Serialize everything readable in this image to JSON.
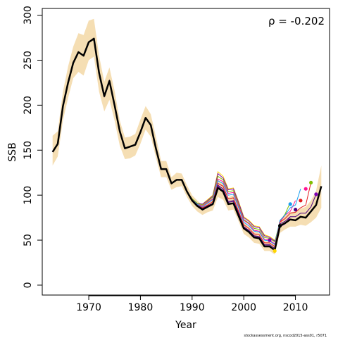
{
  "chart_data": {
    "type": "line",
    "xlabel": "Year",
    "ylabel": "SSB",
    "xlim": [
      1961.0,
      2016.6
    ],
    "ylim": [
      -11.0,
      307.5
    ],
    "x_ticks": [
      1970,
      1980,
      1990,
      2000,
      2010
    ],
    "y_ticks": [
      0,
      50,
      100,
      150,
      200,
      250,
      300
    ],
    "annotation": "ρ = -0.202",
    "footer": "stockassessment.org, nscod2015-ass01, r5071",
    "colors": {
      "band": "#f5deb3",
      "final": "#000000",
      "peels": [
        "#4b0082",
        "#e41a1c",
        "#1a9ff0",
        "#ff1493",
        "#7fbf00",
        "#7b00b3",
        "#ffd700"
      ]
    },
    "band": {
      "x": [
        1963,
        1964,
        1965,
        1966,
        1967,
        1968,
        1969,
        1970,
        1971,
        1972,
        1973,
        1974,
        1975,
        1976,
        1977,
        1978,
        1979,
        1980,
        1981,
        1982,
        1983,
        1984,
        1985,
        1986,
        1987,
        1988,
        1989,
        1990,
        1991,
        1992,
        1993,
        1994,
        1995,
        1996,
        1997,
        1998,
        1999,
        2000,
        2001,
        2002,
        2003,
        2004,
        2005,
        2006,
        2007,
        2008,
        2009,
        2010,
        2011,
        2012,
        2013,
        2014,
        2015
      ],
      "lower": [
        133,
        143,
        183,
        208,
        230,
        237,
        233,
        250,
        254,
        215,
        193,
        206,
        183,
        155,
        140,
        141,
        144,
        157,
        173,
        165,
        142,
        120,
        120,
        106,
        109,
        110,
        98,
        88,
        82,
        78,
        81,
        83,
        98,
        95,
        83,
        84,
        71,
        57,
        53,
        47,
        46,
        38,
        38,
        34,
        58,
        62,
        65,
        65,
        67,
        66,
        70,
        75,
        86
      ],
      "upper": [
        166,
        171,
        215,
        243,
        265,
        280,
        278,
        294,
        296,
        255,
        226,
        242,
        216,
        183,
        164,
        165,
        168,
        184,
        199,
        190,
        165,
        138,
        138,
        120,
        125,
        124,
        111,
        100,
        94,
        89,
        93,
        97,
        117,
        113,
        98,
        100,
        85,
        70,
        65,
        59,
        58,
        49,
        48,
        44,
        72,
        77,
        81,
        82,
        85,
        87,
        94,
        105,
        133
      ]
    },
    "series": [
      {
        "values": [
          148,
          157,
          199,
          225,
          247,
          259,
          255,
          270,
          274,
          236,
          210,
          227,
          200,
          171,
          152,
          154,
          156,
          170,
          186,
          178,
          152,
          129,
          129,
          113,
          117,
          117,
          104,
          94,
          88,
          84,
          87,
          90,
          108,
          104,
          90,
          91,
          77,
          63,
          59,
          53,
          52,
          43,
          43,
          39,
          66,
          69,
          73,
          72,
          76,
          75,
          82,
          89,
          110
        ],
        "x": [
          1963,
          1964,
          1965,
          1966,
          1967,
          1968,
          1969,
          1970,
          1971,
          1972,
          1973,
          1974,
          1975,
          1976,
          1977,
          1978,
          1979,
          1980,
          1981,
          1982,
          1983,
          1984,
          1985,
          1986,
          1987,
          1988,
          1989,
          1990,
          1991,
          1992,
          1993,
          1994,
          1995,
          1996,
          1997,
          1998,
          1999,
          2000,
          2001,
          2002,
          2003,
          2004,
          2005,
          2006,
          2007,
          2008,
          2009,
          2010,
          2011,
          2012,
          2013,
          2014,
          2015
        ]
      },
      {
        "values": [
          148,
          157,
          199,
          225,
          247,
          259,
          255,
          270,
          274,
          236,
          210,
          227,
          200,
          171,
          152,
          154,
          156,
          170,
          186,
          178,
          152,
          129,
          129,
          113,
          117,
          117,
          104,
          95,
          89,
          85,
          88,
          91,
          111,
          107,
          93,
          94,
          80,
          65,
          61,
          55,
          54,
          45,
          45,
          41,
          68,
          71,
          76,
          76,
          80,
          80,
          87,
          101
        ],
        "x": [
          1963,
          1964,
          1965,
          1966,
          1967,
          1968,
          1969,
          1970,
          1971,
          1972,
          1973,
          1974,
          1975,
          1976,
          1977,
          1978,
          1979,
          1980,
          1981,
          1982,
          1983,
          1984,
          1985,
          1986,
          1987,
          1988,
          1989,
          1990,
          1991,
          1992,
          1993,
          1994,
          1995,
          1996,
          1997,
          1998,
          1999,
          2000,
          2001,
          2002,
          2003,
          2004,
          2005,
          2006,
          2007,
          2008,
          2009,
          2010,
          2011,
          2012,
          2013,
          2014
        ]
      },
      {
        "values": [
          148,
          157,
          199,
          225,
          247,
          259,
          255,
          270,
          274,
          236,
          210,
          227,
          200,
          171,
          152,
          154,
          156,
          170,
          186,
          178,
          152,
          129,
          129,
          113,
          117,
          117,
          104,
          95,
          89,
          86,
          89,
          93,
          113,
          110,
          96,
          97,
          82,
          67,
          63,
          57,
          56,
          47,
          47,
          43,
          70,
          74,
          80,
          81,
          86,
          89,
          114
        ],
        "x": [
          1963,
          1964,
          1965,
          1966,
          1967,
          1968,
          1969,
          1970,
          1971,
          1972,
          1973,
          1974,
          1975,
          1976,
          1977,
          1978,
          1979,
          1980,
          1981,
          1982,
          1983,
          1984,
          1985,
          1986,
          1987,
          1988,
          1989,
          1990,
          1991,
          1992,
          1993,
          1994,
          1995,
          1996,
          1997,
          1998,
          1999,
          2000,
          2001,
          2002,
          2003,
          2004,
          2005,
          2006,
          2007,
          2008,
          2009,
          2010,
          2011,
          2012,
          2013
        ]
      },
      {
        "values": [
          148,
          157,
          199,
          225,
          247,
          259,
          255,
          270,
          274,
          236,
          210,
          227,
          200,
          171,
          152,
          154,
          156,
          170,
          186,
          178,
          152,
          129,
          129,
          113,
          117,
          117,
          104,
          95,
          90,
          87,
          91,
          95,
          116,
          113,
          100,
          101,
          86,
          70,
          66,
          60,
          59,
          50,
          49,
          45,
          72,
          78,
          86,
          89,
          107
        ],
        "x": [
          1963,
          1964,
          1965,
          1966,
          1967,
          1968,
          1969,
          1970,
          1971,
          1972,
          1973,
          1974,
          1975,
          1976,
          1977,
          1978,
          1979,
          1980,
          1981,
          1982,
          1983,
          1984,
          1985,
          1986,
          1987,
          1988,
          1989,
          1990,
          1991,
          1992,
          1993,
          1994,
          1995,
          1996,
          1997,
          1998,
          1999,
          2000,
          2001,
          2002,
          2003,
          2004,
          2005,
          2006,
          2007,
          2008,
          2009,
          2010,
          2011
        ]
      },
      {
        "values": [
          148,
          157,
          199,
          225,
          247,
          259,
          255,
          270,
          274,
          236,
          210,
          227,
          200,
          171,
          152,
          154,
          156,
          170,
          186,
          178,
          152,
          129,
          129,
          113,
          117,
          117,
          104,
          95,
          90,
          88,
          92,
          96,
          118,
          115,
          102,
          103,
          88,
          72,
          68,
          61,
          60,
          51,
          50,
          46,
          70,
          78,
          82,
          94
        ],
        "x": [
          1963,
          1964,
          1965,
          1966,
          1967,
          1968,
          1969,
          1970,
          1971,
          1972,
          1973,
          1974,
          1975,
          1976,
          1977,
          1978,
          1979,
          1980,
          1981,
          1982,
          1983,
          1984,
          1985,
          1986,
          1987,
          1988,
          1989,
          1990,
          1991,
          1992,
          1993,
          1994,
          1995,
          1996,
          1997,
          1998,
          1999,
          2000,
          2001,
          2002,
          2003,
          2004,
          2005,
          2006,
          2007,
          2008,
          2009,
          2010
        ]
      },
      {
        "values": [
          148,
          157,
          199,
          225,
          247,
          259,
          255,
          270,
          274,
          236,
          210,
          227,
          200,
          171,
          152,
          154,
          156,
          170,
          186,
          178,
          152,
          129,
          129,
          113,
          117,
          117,
          104,
          96,
          91,
          89,
          93,
          98,
          121,
          117,
          104,
          105,
          90,
          73,
          69,
          63,
          62,
          53,
          52,
          48,
          71,
          79,
          92
        ],
        "x": [
          1963,
          1964,
          1965,
          1966,
          1967,
          1968,
          1969,
          1970,
          1971,
          1972,
          1973,
          1974,
          1975,
          1976,
          1977,
          1978,
          1979,
          1980,
          1981,
          1982,
          1983,
          1984,
          1985,
          1986,
          1987,
          1988,
          1989,
          1990,
          1991,
          1992,
          1993,
          1994,
          1995,
          1996,
          1997,
          1998,
          1999,
          2000,
          2001,
          2002,
          2003,
          2004,
          2005,
          2006,
          2007,
          2008,
          2009
        ]
      },
      {
        "values": [
          148,
          157,
          199,
          225,
          247,
          259,
          255,
          270,
          274,
          236,
          210,
          227,
          200,
          171,
          152,
          154,
          156,
          170,
          186,
          178,
          152,
          129,
          129,
          113,
          117,
          117,
          104,
          96,
          91,
          90,
          94,
          99,
          124,
          119,
          106,
          107,
          92,
          75,
          71,
          65,
          64,
          55,
          53,
          49,
          65,
          68,
          76
        ],
        "x": [
          1963,
          1964,
          1965,
          1966,
          1967,
          1968,
          1969,
          1970,
          1971,
          1972,
          1973,
          1974,
          1975,
          1976,
          1977,
          1978,
          1979,
          1980,
          1981,
          1982,
          1983,
          1984,
          1985,
          1986,
          1987,
          1988,
          1989,
          1990,
          1991,
          1992,
          1993,
          1994,
          1995,
          1996,
          1997,
          1998,
          1999,
          2000,
          2001,
          2002,
          2003,
          2004,
          2005,
          2006,
          2007,
          2008,
          2009
        ]
      },
      {
        "values": [
          148,
          157,
          199,
          225,
          247,
          259,
          255,
          270,
          274,
          236,
          210,
          227,
          200,
          171,
          152,
          154,
          156,
          170,
          186,
          178,
          152,
          129,
          129,
          113,
          117,
          117,
          104,
          96,
          91,
          90,
          95,
          100,
          126,
          121,
          107,
          108,
          93,
          76,
          72,
          66,
          65,
          56,
          54,
          50
        ],
        "x": [
          1963,
          1964,
          1965,
          1966,
          1967,
          1968,
          1969,
          1970,
          1971,
          1972,
          1973,
          1974,
          1975,
          1976,
          1977,
          1978,
          1979,
          1980,
          1981,
          1982,
          1983,
          1984,
          1985,
          1986,
          1987,
          1988,
          1989,
          1990,
          1991,
          1992,
          1993,
          1994,
          1995,
          1996,
          1997,
          1998,
          1999,
          2000,
          2001,
          2002,
          2003,
          2004,
          2005,
          2006
        ]
      },
      {
        "values": [
          148,
          157,
          199,
          225,
          247,
          259,
          255,
          270,
          274,
          236,
          210,
          227,
          200,
          171,
          152,
          154,
          156,
          170,
          186,
          178,
          152,
          129,
          129,
          113,
          117,
          117,
          104,
          95,
          89,
          85,
          88,
          91,
          110,
          105,
          92,
          93,
          79,
          64,
          60,
          54,
          53,
          44,
          44,
          38
        ],
        "x": [
          1963,
          1964,
          1965,
          1966,
          1967,
          1968,
          1969,
          1970,
          1971,
          1972,
          1973,
          1974,
          1975,
          1976,
          1977,
          1978,
          1979,
          1980,
          1981,
          1982,
          1983,
          1984,
          1985,
          1986,
          1987,
          1988,
          1989,
          1990,
          1991,
          1992,
          1993,
          1994,
          1995,
          1996,
          1997,
          1998,
          1999,
          2000,
          2001,
          2002,
          2003,
          2004,
          2005,
          2006
        ]
      }
    ],
    "endpoints": [
      {
        "x": 2007,
        "y": 66,
        "color": "#000000"
      },
      {
        "x": 2014,
        "y": 101,
        "color": "#7b00b3"
      },
      {
        "x": 2013,
        "y": 114,
        "color": "#7fbf00"
      },
      {
        "x": 2012,
        "y": 107,
        "color": "#ff1493"
      },
      {
        "x": 2011,
        "y": 94,
        "color": "#e41a1c"
      },
      {
        "x": 2010,
        "y": 84,
        "color": "#4b0082"
      },
      {
        "x": 2009,
        "y": 90,
        "color": "#1a9ff0"
      },
      {
        "x": 2005,
        "y": 50,
        "color": "#7b00b3"
      },
      {
        "x": 2006,
        "y": 38,
        "color": "#ffd700"
      }
    ]
  }
}
